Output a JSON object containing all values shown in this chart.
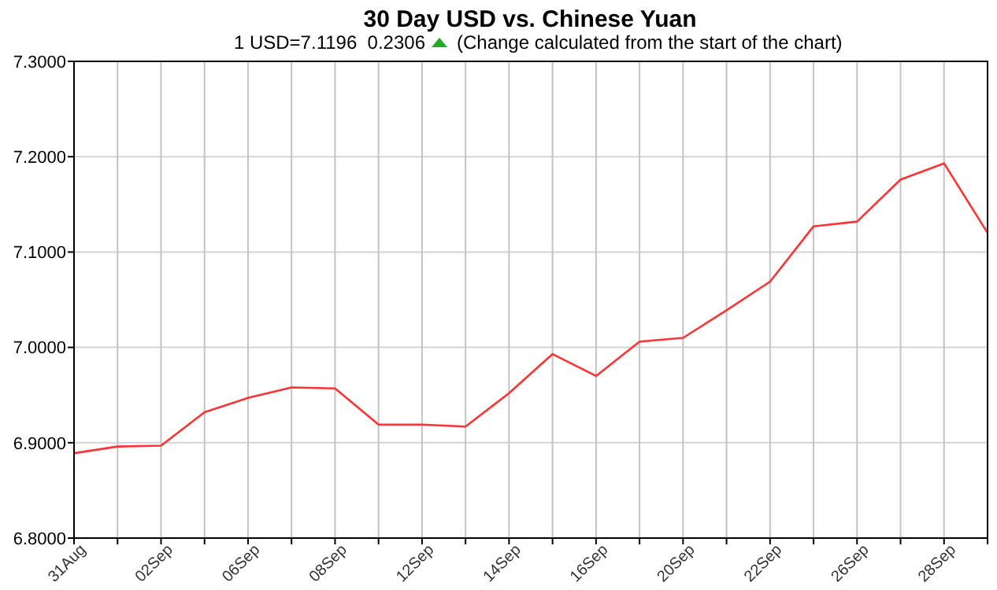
{
  "chart_data": {
    "type": "line",
    "title": "30 Day USD vs. Chinese Yuan",
    "subtitle": "1 USD=7.1196  0.2306",
    "annotations": [
      "(Change calculated from the start of the chart)"
    ],
    "categories": [
      "31Aug",
      null,
      "02Sep",
      null,
      "06Sep",
      null,
      "08Sep",
      null,
      "12Sep",
      null,
      "14Sep",
      null,
      "16Sep",
      null,
      "20Sep",
      null,
      "22Sep",
      null,
      "26Sep",
      null,
      "28Sep",
      null
    ],
    "series": [
      {
        "color": "#ff3333",
        "values": [
          6.889,
          6.896,
          6.897,
          6.932,
          6.947,
          6.958,
          6.957,
          6.919,
          6.919,
          6.917,
          6.952,
          6.993,
          6.97,
          7.006,
          7.01,
          7.039,
          7.069,
          7.127,
          7.132,
          7.176,
          7.193,
          7.12
        ]
      }
    ],
    "ylim": [
      6.8,
      7.3
    ],
    "yticks": [
      {
        "value": 6.8,
        "label": "6.8000"
      },
      {
        "value": 6.9,
        "label": "6.9000"
      },
      {
        "value": 7.0,
        "label": "7.0000"
      },
      {
        "value": 7.1,
        "label": "7.1000"
      },
      {
        "value": 7.2,
        "label": "7.2000"
      },
      {
        "value": 7.3,
        "label": "7.3000"
      }
    ],
    "grid": true,
    "marker": "none",
    "line_style": "solid"
  }
}
